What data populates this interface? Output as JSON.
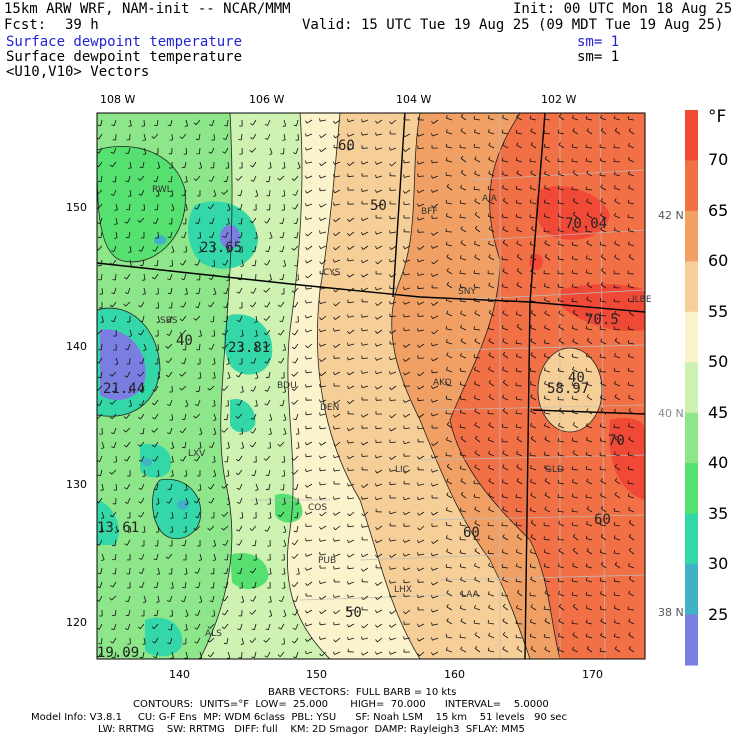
{
  "header": {
    "model": "15km ARW WRF, NAM-init -- NCAR/MMM",
    "init": "Init: 00 UTC Mon 18 Aug 25",
    "fcst_label": "Fcst:",
    "fcst_value": "39 h",
    "valid": "Valid: 15 UTC Tue 19 Aug 25 (09 MDT Tue 19 Aug 25)",
    "field1": "Surface dewpoint temperature",
    "sm1": "sm= 1",
    "field2": "Surface dewpoint temperature",
    "sm2": "sm= 1",
    "field3": "<U10,V10> Vectors"
  },
  "top_ticks": [
    "108 W",
    "106 W",
    "104 W",
    "102 W"
  ],
  "left_ticks": [
    "150",
    "140",
    "130",
    "120"
  ],
  "bottom_ticks": [
    "140",
    "150",
    "160",
    "170"
  ],
  "right_lat_ticks": [
    "42 N",
    "40 N",
    "38 N"
  ],
  "colorbar": {
    "unit": "°F",
    "labels": [
      "70",
      "65",
      "60",
      "55",
      "50",
      "45",
      "40",
      "35",
      "30",
      "25"
    ],
    "colors": [
      "#f04a37",
      "#f27046",
      "#f1a065",
      "#f6cf98",
      "#fbf3cc",
      "#cef2b2",
      "#8ee68a",
      "#56e070",
      "#34d8a8",
      "#3fb2c6",
      "#7a7ee0"
    ]
  },
  "map": {
    "stations": [
      "RWL",
      "BFF",
      "AIA",
      "CYS",
      "SNY",
      "SBS",
      "BDU",
      "DEN",
      "AKO",
      "LXV",
      "LIC",
      "GLD",
      "COS",
      "PUB",
      "LHX",
      "LAA",
      "ALS",
      "ILBE"
    ],
    "values": [
      "23.65",
      "23.81",
      "21.44",
      "13.61",
      "19.09",
      "70.04",
      "70.5",
      "58.97",
      "70"
    ],
    "contour_labels": [
      "60",
      "50",
      "40",
      "60",
      "50",
      "60",
      "40"
    ]
  },
  "footer": {
    "barbs": "BARB VECTORS:  FULL BARB = 10 kts",
    "contours": "CONTOURS:  UNITS=°F  LOW=  25.000       HIGH=  70.000      INTERVAL=    5.0000",
    "model_info": "Model Info: V3.8.1     CU: G-F Ens  MP: WDM 6class  PBL: YSU      SF: Noah LSM    15 km    51 levels   90 sec",
    "model_info2": "LW: RRTMG    SW: RRTMG   DIFF: full    KM: 2D Smagor  DAMP: Rayleigh3  SFLAY: MM5"
  }
}
